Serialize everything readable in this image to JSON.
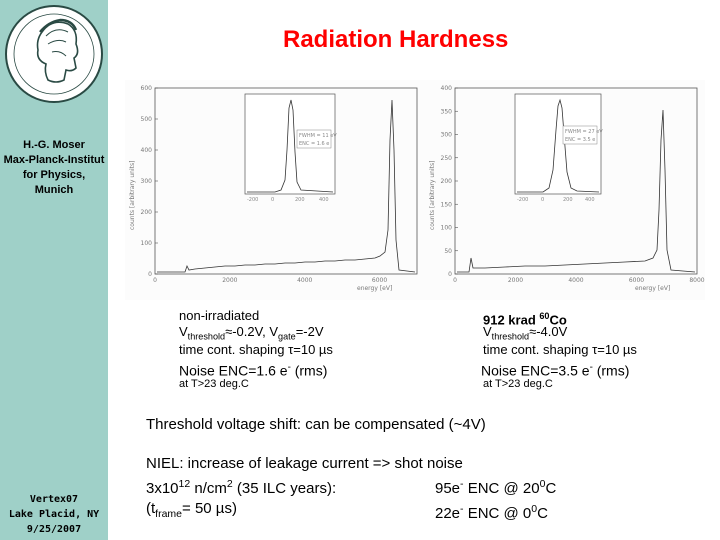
{
  "slide": {
    "title": "Radiation Hardness",
    "author": [
      "H.-G. Moser",
      "Max-Planck-Institut",
      "for Physics,",
      "Munich"
    ],
    "conference": [
      "Vertex07",
      "Lake Placid, NY",
      "9/25/2007"
    ]
  },
  "left_caption": {
    "l1": "non-irradiated",
    "l2_v": "V",
    "l2_sub": "threshold",
    "l2_rest": "≈-0.2V, V",
    "l2_sub2": "gate",
    "l2_end": "=-2V",
    "l3": "time cont. shaping τ=10 µs",
    "l4": "Noise ENC=1.6 e",
    "l4_sup": "-",
    "l4_end": " (rms)",
    "l5": "at T>23 deg.C"
  },
  "right_caption": {
    "l1a": "912 krad ",
    "l1_sup": "60",
    "l1b": "Co",
    "l2_v": "V",
    "l2_sub": "threshold",
    "l2_rest": "≈-4.0V",
    "l3": "time cont. shaping τ=10 µs",
    "l4": "Noise ENC=3.5 e",
    "l4_sup": "-",
    "l4_end": " (rms)",
    "l5": "at T>23 deg.C"
  },
  "threshold_note": "Threshold voltage shift: can be compensated (~4V)",
  "niel": {
    "l1": "NIEL: increase of leakage current => shot noise",
    "l2a": "3x10",
    "l2_sup": "12",
    "l2b": " n/cm",
    "l2_sup2": "2",
    "l2c": " (35 ILC years):",
    "l3a": "(t",
    "l3_sub": "frame",
    "l3b": "= 50 µs)",
    "r1a": "95e",
    "r1_sup": "-",
    "r1b": " ENC @ 20",
    "r1_sup2": "0",
    "r1c": "C",
    "r2a": "22e",
    "r2_sup": "-",
    "r2b": " ENC @ 0",
    "r2_sup2": "0",
    "r2c": "C"
  },
  "chart_data": [
    {
      "type": "line",
      "title": "non-irradiated spectrum",
      "xlabel": "energy [eV]",
      "ylabel": "counts [arbitrary units]",
      "yticks": [
        "0",
        "100",
        "200",
        "300",
        "400",
        "500",
        "600"
      ],
      "xticks": [
        "0",
        "2000",
        "4000",
        "6000"
      ],
      "ylim": [
        0,
        600
      ],
      "xlim": [
        0,
        7000
      ],
      "inset": {
        "xticks": [
          "-200",
          "0",
          "200",
          "400"
        ],
        "yticks": [
          "0",
          "50",
          "100",
          "150",
          "200"
        ],
        "legend": [
          "FWHM = 11 eV",
          "ENC = 1.6 e"
        ]
      }
    },
    {
      "type": "line",
      "title": "912 krad 60Co spectrum",
      "xlabel": "energy [eV]",
      "ylabel": "counts [arbitrary units]",
      "yticks": [
        "0",
        "50",
        "100",
        "150",
        "200",
        "250",
        "300",
        "350",
        "400"
      ],
      "xticks": [
        "0",
        "2000",
        "4000",
        "6000",
        "8000"
      ],
      "ylim": [
        0,
        400
      ],
      "xlim": [
        0,
        8000
      ],
      "inset": {
        "xticks": [
          "-200",
          "0",
          "200",
          "400"
        ],
        "yticks": [
          "0",
          "20",
          "40",
          "60",
          "80"
        ],
        "legend": [
          "FWHM = 27 eV",
          "ENC = 3.5 e"
        ]
      }
    }
  ]
}
